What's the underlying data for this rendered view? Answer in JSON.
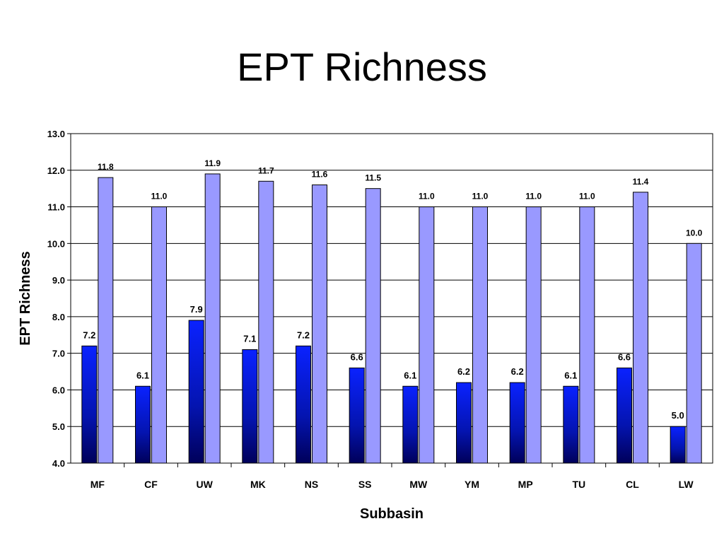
{
  "chart_data": {
    "type": "bar",
    "title": "EPT Richness",
    "xlabel": "Subbasin",
    "ylabel": "EPT Richness",
    "ylim": [
      4.0,
      13.0
    ],
    "ytick_step": 1.0,
    "grid": true,
    "categories": [
      "MF",
      "CF",
      "UW",
      "MK",
      "NS",
      "SS",
      "MW",
      "YM",
      "MP",
      "TU",
      "CL",
      "LW"
    ],
    "series": [
      {
        "color": "#0a1ee6",
        "values": [
          7.2,
          6.1,
          7.9,
          7.1,
          7.2,
          6.6,
          6.1,
          6.2,
          6.2,
          6.1,
          6.6,
          5.0
        ]
      },
      {
        "color": "#9999ff",
        "values": [
          11.8,
          11.0,
          11.9,
          11.7,
          11.6,
          11.5,
          11.0,
          11.0,
          11.0,
          11.0,
          11.4,
          10.0
        ]
      }
    ]
  }
}
